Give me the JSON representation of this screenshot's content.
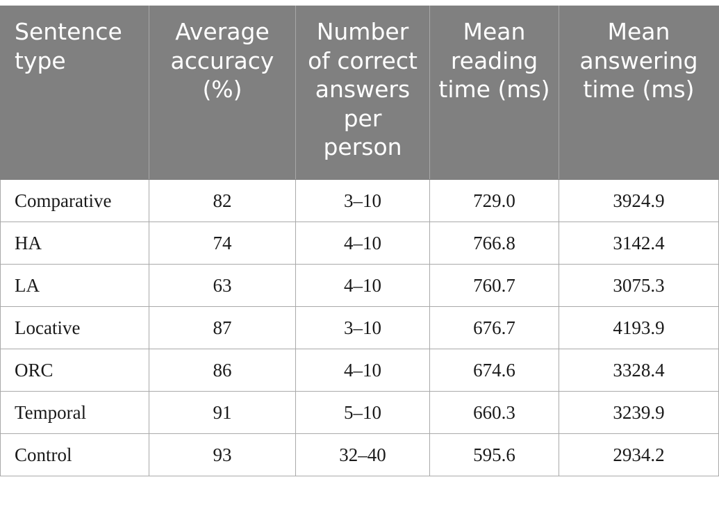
{
  "table": {
    "headers": [
      "Sentence type",
      "Average accuracy (%)",
      "Number of correct answers per person",
      "Mean reading time (ms)",
      "Mean answering time (ms)"
    ],
    "rows": [
      [
        "Comparative",
        "82",
        "3–10",
        "729.0",
        "3924.9"
      ],
      [
        "HA",
        "74",
        "4–10",
        "766.8",
        "3142.4"
      ],
      [
        "LA",
        "63",
        "4–10",
        "760.7",
        "3075.3"
      ],
      [
        "Locative",
        "87",
        "3–10",
        "676.7",
        "4193.9"
      ],
      [
        "ORC",
        "86",
        "4–10",
        "674.6",
        "3328.4"
      ],
      [
        "Temporal",
        "91",
        "5–10",
        "660.3",
        "3239.9"
      ],
      [
        "Control",
        "93",
        "32–40",
        "595.6",
        "2934.2"
      ]
    ]
  }
}
